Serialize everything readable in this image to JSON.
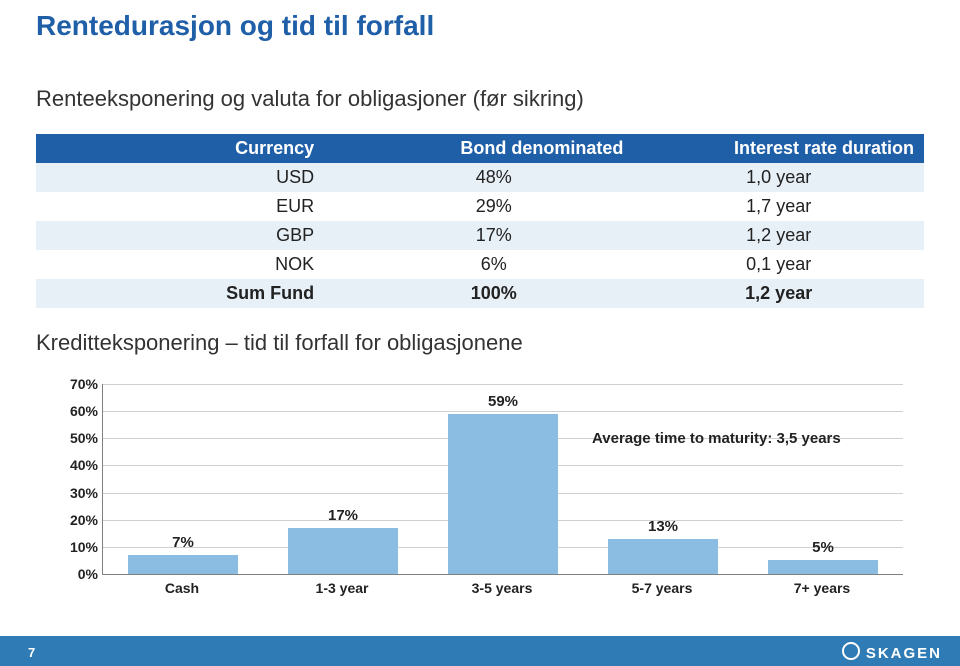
{
  "title": {
    "text": "Rentedurasjon og tid til forfall",
    "color": "#1f5fa8"
  },
  "subtitle1": "Renteeksponering og valuta for obligasjoner (før sikring)",
  "table": {
    "header_bg": "#1f5fa8",
    "row_alt_bg": "#e7eff7",
    "headers": [
      "Currency",
      "Bond denominated",
      "Interest rate duration"
    ],
    "rows": [
      {
        "c1": "USD",
        "c2": "48%",
        "c3": "1,0 year"
      },
      {
        "c1": "EUR",
        "c2": "29%",
        "c3": "1,7 year"
      },
      {
        "c1": "GBP",
        "c2": "17%",
        "c3": "1,2 year"
      },
      {
        "c1": "NOK",
        "c2": "6%",
        "c3": "0,1 year"
      },
      {
        "c1": "Sum Fund",
        "c2": "100%",
        "c3": "1,2 year"
      }
    ]
  },
  "subtitle2": "Kreditteksponering – tid til forfall for obligasjonene",
  "chart": {
    "type": "bar",
    "ylim": [
      0,
      70
    ],
    "ytick_step": 10,
    "yticks": [
      "0%",
      "10%",
      "20%",
      "30%",
      "40%",
      "50%",
      "60%",
      "70%"
    ],
    "bar_color": "#8bbce1",
    "grid_color": "#d0d0d0",
    "axis_color": "#808080",
    "categories": [
      "Cash",
      "1-3 year",
      "3-5 years",
      "5-7 years",
      "7+ years"
    ],
    "values": [
      7,
      17,
      59,
      13,
      5
    ],
    "value_labels": [
      "7%",
      "17%",
      "59%",
      "13%",
      "5%"
    ],
    "annotation": "Average time to maturity: 3,5 years"
  },
  "footer": {
    "bg": "#2f7bb5",
    "page": "7",
    "logo": "SKAGEN"
  }
}
